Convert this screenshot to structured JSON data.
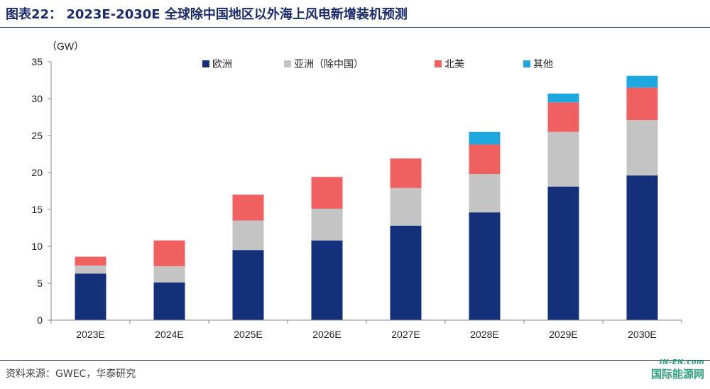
{
  "title": "图表22：  2023E-2030E 全球除中国地区以外海上风电新增装机预测",
  "source": "资料来源：GWEC，华泰研究",
  "watermark": {
    "top": "IN-EN.com",
    "bottom": "国际能源网"
  },
  "chart_data": {
    "type": "bar",
    "stacked": true,
    "title": "",
    "unit_label": "（GW）",
    "xlabel": "",
    "ylabel": "",
    "ylim": [
      0,
      35
    ],
    "yticks": [
      0,
      5,
      10,
      15,
      20,
      25,
      30,
      35
    ],
    "grid": false,
    "legend_position": "top",
    "categories": [
      "2023E",
      "2024E",
      "2025E",
      "2026E",
      "2027E",
      "2028E",
      "2029E",
      "2030E"
    ],
    "series": [
      {
        "name": "欧洲",
        "color": "#14307a",
        "values": [
          6.3,
          5.1,
          9.5,
          10.8,
          12.8,
          14.6,
          18.1,
          19.6
        ]
      },
      {
        "name": "亚洲（除中国）",
        "color": "#c4c4c4",
        "values": [
          1.1,
          2.2,
          4.0,
          4.3,
          5.1,
          5.2,
          7.4,
          7.5
        ]
      },
      {
        "name": "北美",
        "color": "#f06060",
        "values": [
          1.2,
          3.5,
          3.5,
          4.3,
          4.0,
          4.0,
          4.0,
          4.4
        ]
      },
      {
        "name": "其他",
        "color": "#1fa8e0",
        "values": [
          0,
          0,
          0,
          0,
          0,
          1.7,
          1.2,
          1.6
        ]
      }
    ]
  }
}
